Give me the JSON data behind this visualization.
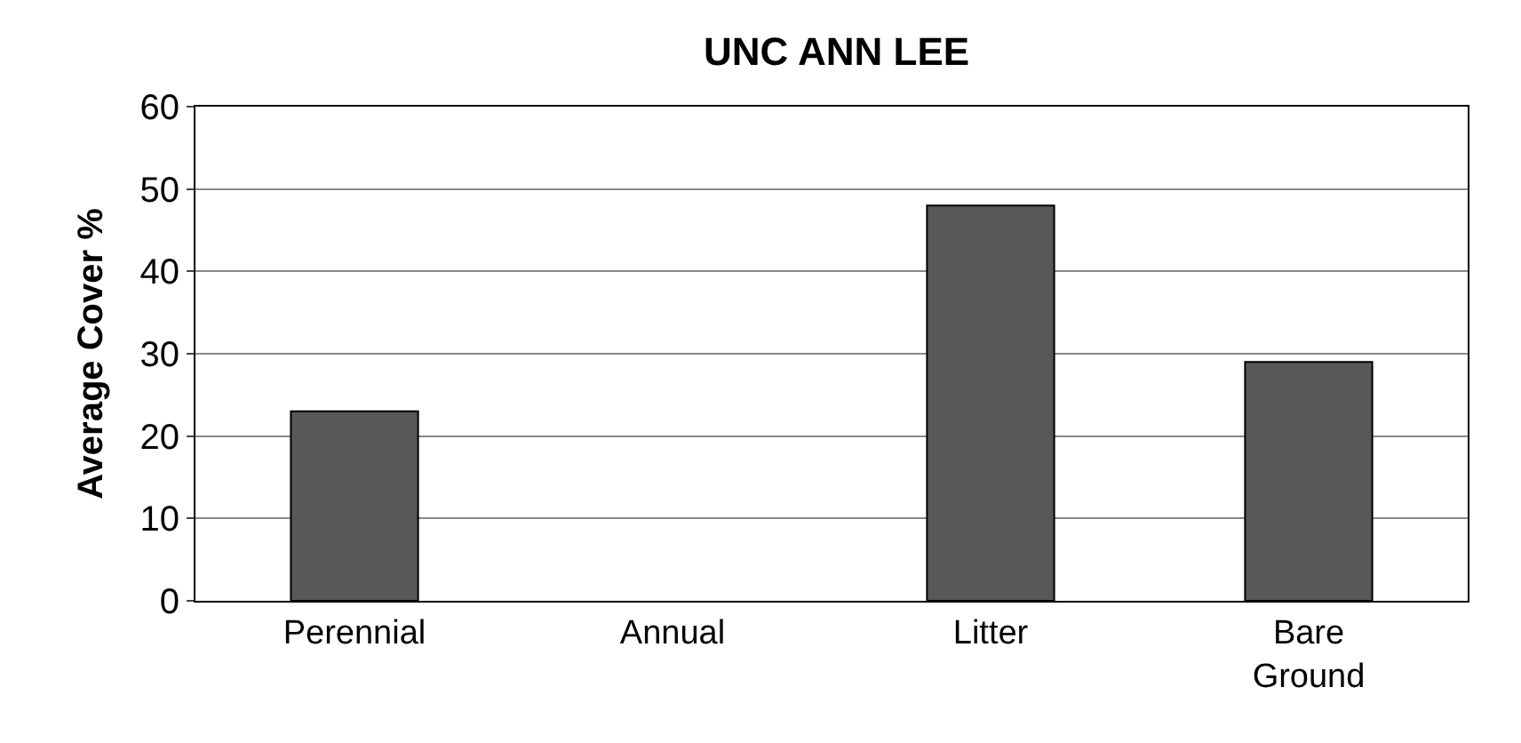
{
  "chart_data": {
    "type": "bar",
    "title": "UNC ANN LEE",
    "ylabel": "Average Cover %",
    "categories": [
      "Perennial",
      "Annual",
      "Litter",
      "Bare\nGround"
    ],
    "values": [
      23,
      0,
      48,
      29
    ],
    "color": "#585858",
    "ylim": [
      0,
      60
    ],
    "yticks": [
      0,
      10,
      20,
      30,
      40,
      50,
      60
    ],
    "grid": "y",
    "legend": false
  }
}
